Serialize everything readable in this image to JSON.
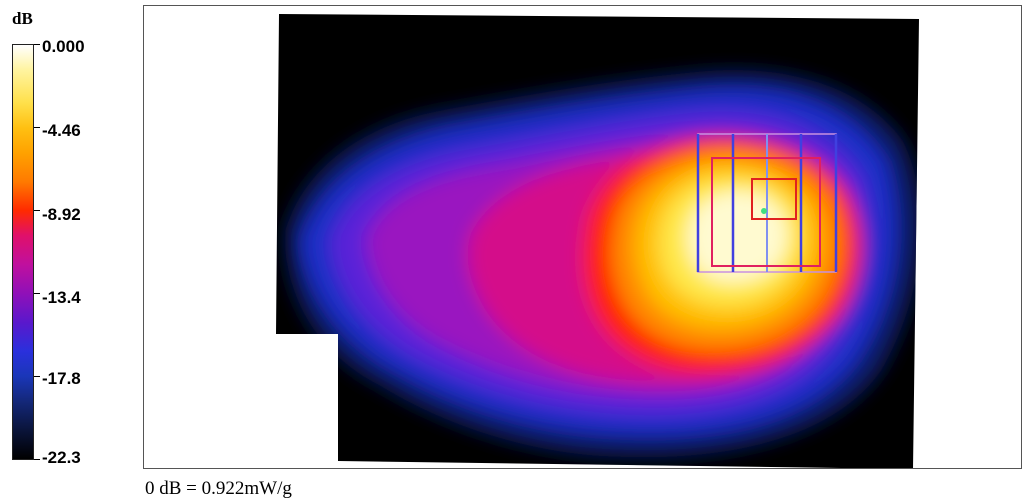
{
  "chart_data": {
    "type": "heatmap",
    "unit": "dB",
    "reference": "0 dB = 0.922mW/g",
    "colorbar": {
      "ticks": [
        "0.000",
        "-4.46",
        "-8.92",
        "-13.4",
        "-17.8",
        "-22.3"
      ],
      "values": [
        0.0,
        -4.46,
        -8.92,
        -13.4,
        -17.8,
        -22.3
      ],
      "range": [
        -22.3,
        0.0
      ],
      "colors": [
        "#ffffff",
        "#ffd400",
        "#ff2000",
        "#b010b0",
        "#2030e0",
        "#000000"
      ]
    },
    "peak": {
      "value_db": 0.0
    }
  }
}
